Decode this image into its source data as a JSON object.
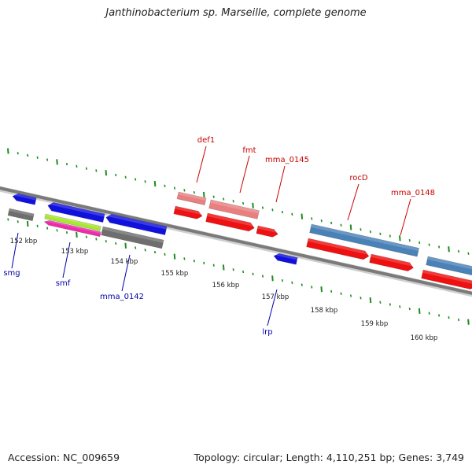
{
  "title": "Janthinobacterium sp. Marseille, complete genome",
  "footer": {
    "accession": "Accession: NC_009659",
    "stats": "Topology: circular; Length: 4,110,251 bp; Genes: 3,749"
  },
  "colors": {
    "backbone": "#7a7a7a",
    "forward_red": "#ee1111",
    "forward_pink": "#e88080",
    "reverse_blue": "#1111dd",
    "rrna_steelblue": "#4a82b8",
    "grey_feature": "#6e6e6e",
    "lime_feature": "#a8e830",
    "magenta_feature": "#ee2aa8",
    "tick_green": "#1e8c1e",
    "forward_label": "#cc0000",
    "reverse_label": "#0000aa"
  },
  "ticks": [
    "152 kbp",
    "153 kbp",
    "154 kbp",
    "155 kbp",
    "156 kbp",
    "157 kbp",
    "158 kbp",
    "159 kbp",
    "160 kbp"
  ],
  "forward_gene_labels": [
    "def1",
    "fmt",
    "mma_0145",
    "rocD",
    "mma_0148"
  ],
  "reverse_gene_labels": [
    "smg",
    "smf",
    "mma_0142",
    "lrp"
  ]
}
